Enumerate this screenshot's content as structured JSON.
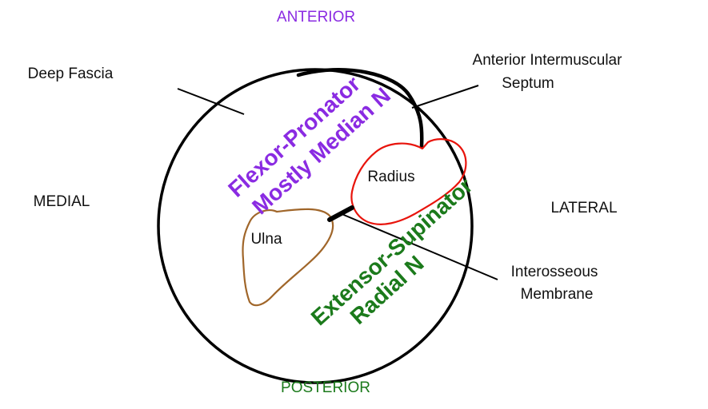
{
  "directions": {
    "anterior": "ANTERIOR",
    "posterior": "POSTERIOR",
    "medial": "MEDIAL",
    "lateral": "LATERAL"
  },
  "labels": {
    "deep_fascia": "Deep Fascia",
    "anterior_septum_line1": "Anterior Intermuscular",
    "anterior_septum_line2": "Septum",
    "interosseous_line1": "Interosseous",
    "interosseous_line2": "Membrane"
  },
  "bones": {
    "radius": "Radius",
    "ulna": "Ulna"
  },
  "compartments": {
    "flexor_line1": "Flexor-Pronator",
    "flexor_line2": "Mostly Median N",
    "extensor_line1": "Extensor-Supinator",
    "extensor_line2": "Radial N"
  },
  "colors": {
    "anterior": "#8a2be2",
    "posterior": "#1b7a1b",
    "radius_outline": "#e8140c",
    "ulna_outline": "#a0662a",
    "lines": "#000000"
  }
}
